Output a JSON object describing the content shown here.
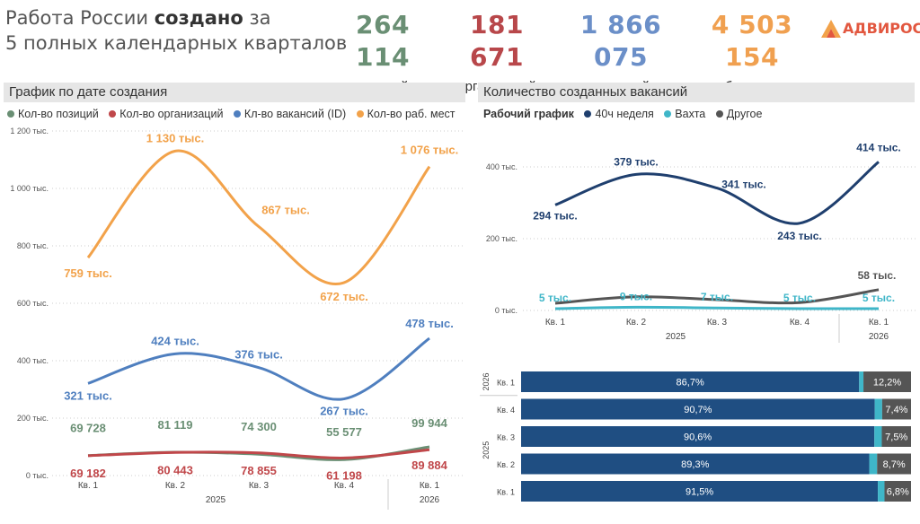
{
  "header": {
    "title_part1": "Работа России ",
    "title_bold": "создано",
    "title_part2": " за",
    "title_line2": "5 полных календарных кварталов",
    "kpis": [
      {
        "value": "264 114",
        "label": "позиций",
        "color": "#6a8f74"
      },
      {
        "value": "181 671",
        "label": "организаций",
        "color": "#b8474a"
      },
      {
        "value": "1 866 075",
        "label": "вакансий",
        "color": "#6b8fc8"
      },
      {
        "value": "4 503 154",
        "label": "рабочих мест",
        "color": "#f0a050"
      }
    ],
    "logo_text": "АДВИРОС"
  },
  "left_panel": {
    "title": "График по дате создания",
    "legend": [
      {
        "name": "Кол-во позиций",
        "color": "#6a8f74"
      },
      {
        "name": "Кол-во организаций",
        "color": "#c0474a"
      },
      {
        "name": "Кл-во вакансий (ID)",
        "color": "#4f7fbf"
      },
      {
        "name": "Кол-во раб. мест",
        "color": "#f2a24a"
      }
    ]
  },
  "right_panel": {
    "title": "Количество созданных вакансий",
    "legend_title": "Рабочий график",
    "legend": [
      {
        "name": "40ч неделя",
        "color": "#1f3f6e"
      },
      {
        "name": "Вахта",
        "color": "#3fb6c8"
      },
      {
        "name": "Другое",
        "color": "#555555"
      }
    ]
  },
  "chart_data": [
    {
      "type": "line",
      "categories": [
        "Кв. 1",
        "Кв. 2",
        "Кв. 3",
        "Кв. 4",
        "Кв. 1"
      ],
      "year_labels": [
        "2025",
        "2026"
      ],
      "ylim": [
        0,
        1200
      ],
      "yticks": [
        0,
        200,
        400,
        600,
        800,
        1000,
        1200
      ],
      "ytick_labels": [
        "0 тыс.",
        "200 тыс.",
        "400 тыс.",
        "600 тыс.",
        "800 тыс.",
        "1 000 тыс.",
        "1 200 тыс."
      ],
      "series": [
        {
          "name": "Кол-во раб. мест",
          "color": "#f2a24a",
          "values": [
            759,
            1130,
            867,
            672,
            1076
          ],
          "labels": [
            "759 тыс.",
            "1 130 тыс.",
            "867 тыс.",
            "672 тыс.",
            "1 076 тыс."
          ]
        },
        {
          "name": "Кл-во вакансий (ID)",
          "color": "#4f7fbf",
          "values": [
            321,
            424,
            376,
            267,
            478
          ],
          "labels": [
            "321 тыс.",
            "424 тыс.",
            "376 тыс.",
            "267 тыс.",
            "478 тыс."
          ]
        },
        {
          "name": "Кол-во позиций",
          "color": "#6a8f74",
          "values": [
            69.728,
            81.119,
            74.3,
            55.577,
            99.944
          ],
          "labels": [
            "69 728",
            "81 119",
            "74 300",
            "55 577",
            "99 944"
          ]
        },
        {
          "name": "Кол-во организаций",
          "color": "#c0474a",
          "values": [
            69.182,
            80.443,
            78.855,
            61.198,
            89.884
          ],
          "labels": [
            "69 182",
            "80 443",
            "78 855",
            "61 198",
            "89 884"
          ]
        }
      ]
    },
    {
      "type": "line",
      "categories": [
        "Кв. 1",
        "Кв. 2",
        "Кв. 3",
        "Кв. 4",
        "Кв. 1"
      ],
      "year_labels": [
        "2025",
        "2026"
      ],
      "ylim": [
        0,
        414
      ],
      "yticks": [
        0,
        200,
        400
      ],
      "ytick_labels": [
        "0 тыс.",
        "200 тыс.",
        "400 тыс."
      ],
      "series": [
        {
          "name": "40ч неделя",
          "color": "#1f3f6e",
          "values": [
            294,
            379,
            341,
            243,
            414
          ],
          "labels": [
            "294 тыс.",
            "379 тыс.",
            "341 тыс.",
            "243 тыс.",
            "414 тыс."
          ]
        },
        {
          "name": "Другое",
          "color": "#555555",
          "values": [
            20,
            38,
            30,
            22,
            58
          ],
          "labels": [
            "",
            "",
            "",
            "",
            "58 тыс."
          ]
        },
        {
          "name": "Вахта",
          "color": "#3fb6c8",
          "values": [
            5,
            9,
            7,
            5,
            5
          ],
          "labels": [
            "5 тыс.",
            "9 тыс.",
            "7 тыс.",
            "5 тыс.",
            "5 тыс."
          ]
        }
      ]
    },
    {
      "type": "bar",
      "orientation": "horizontal",
      "stacked": "percent",
      "categories": [
        "Кв. 1",
        "Кв. 4",
        "Кв. 3",
        "Кв. 2",
        "Кв. 1"
      ],
      "year_labels": [
        {
          "label": "2026",
          "rows": [
            0
          ]
        },
        {
          "label": "2025",
          "rows": [
            1,
            2,
            3,
            4
          ]
        }
      ],
      "series": [
        {
          "name": "40ч неделя",
          "color": "#1f4e82",
          "values": [
            86.7,
            90.7,
            90.6,
            89.3,
            91.5
          ],
          "labels": [
            "86,7%",
            "90,7%",
            "90,6%",
            "89,3%",
            "91,5%"
          ]
        },
        {
          "name": "Вахта",
          "color": "#3fb6c8",
          "values": [
            1.1,
            1.9,
            1.9,
            2.0,
            1.7
          ]
        },
        {
          "name": "Другое",
          "color": "#555555",
          "values": [
            12.2,
            7.4,
            7.5,
            8.7,
            6.8
          ],
          "labels": [
            "12,2%",
            "7,4%",
            "7,5%",
            "8,7%",
            "6,8%"
          ]
        }
      ]
    }
  ]
}
